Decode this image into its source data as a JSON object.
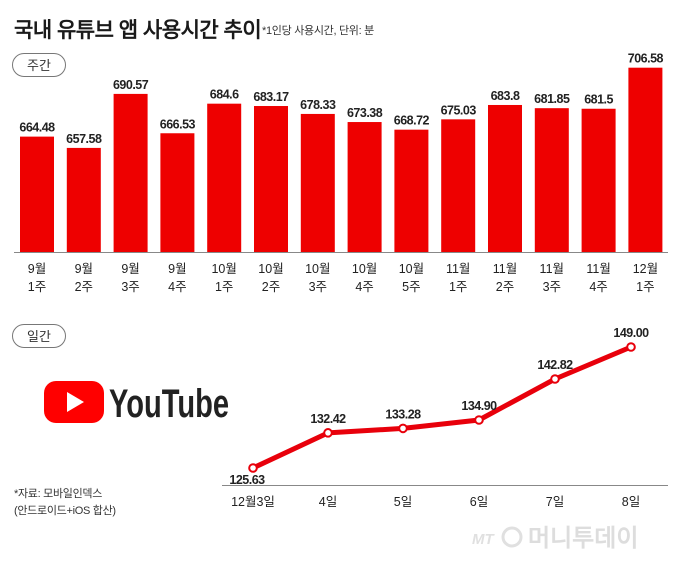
{
  "header": {
    "title": "국내 유튜브 앱 사용시간 추이",
    "note": "*1인당 사용시간, 단위: 분"
  },
  "weekly_label": "주간",
  "daily_label": "일간",
  "logo_text": "YouTube",
  "source": {
    "line1": "*자료: 모바일인덱스",
    "line2": "(안드로이드+iOS 합산)"
  },
  "watermark_text": "머니투데이",
  "colors": {
    "bar": "#ee0000",
    "line": "#e8000b",
    "logo_red": "#ff0000",
    "text": "#222222"
  },
  "chart_data": [
    {
      "type": "bar",
      "section": "주간",
      "categories": [
        [
          "9월",
          "1주"
        ],
        [
          "9월",
          "2주"
        ],
        [
          "9월",
          "3주"
        ],
        [
          "9월",
          "4주"
        ],
        [
          "10월",
          "1주"
        ],
        [
          "10월",
          "2주"
        ],
        [
          "10월",
          "3주"
        ],
        [
          "10월",
          "4주"
        ],
        [
          "10월",
          "5주"
        ],
        [
          "11월",
          "1주"
        ],
        [
          "11월",
          "2주"
        ],
        [
          "11월",
          "3주"
        ],
        [
          "11월",
          "4주"
        ],
        [
          "12월",
          "1주"
        ]
      ],
      "values": [
        664.48,
        657.58,
        690.57,
        666.53,
        684.6,
        683.17,
        678.33,
        673.38,
        668.72,
        675.03,
        683.8,
        681.85,
        681.5,
        706.58
      ],
      "value_labels": [
        "664.48",
        "657.58",
        "690.57",
        "666.53",
        "684.6",
        "683.17",
        "678.33",
        "673.38",
        "668.72",
        "675.03",
        "683.8",
        "681.85",
        "681.5",
        "706.58"
      ],
      "ylim": [
        594,
        707
      ]
    },
    {
      "type": "line",
      "section": "일간",
      "x": [
        "12월3일",
        "4일",
        "5일",
        "6일",
        "7일",
        "8일"
      ],
      "values": [
        125.63,
        132.42,
        133.28,
        134.9,
        142.82,
        149.0
      ],
      "value_labels": [
        "125.63",
        "132.42",
        "133.28",
        "134.90",
        "142.82",
        "149.00"
      ],
      "ylim": [
        125.63,
        149.0
      ]
    }
  ]
}
